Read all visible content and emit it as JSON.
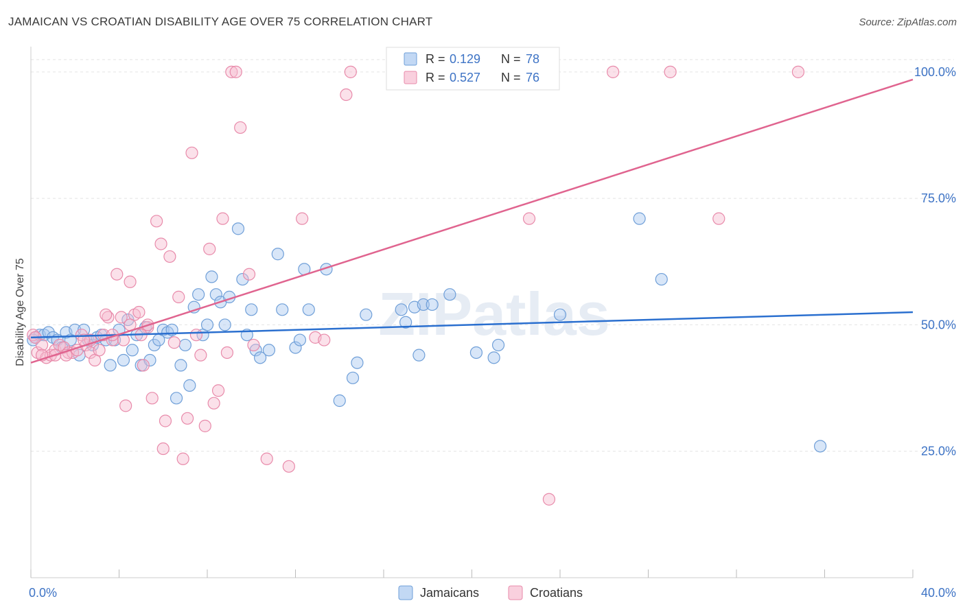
{
  "chart_data": {
    "type": "scatter",
    "title": "JAMAICAN VS CROATIAN DISABILITY AGE OVER 75 CORRELATION CHART",
    "source": "Source: ZipAtlas.com",
    "xlabel": "",
    "ylabel": "Disability Age Over 75",
    "xlim": [
      0,
      40
    ],
    "ylim": [
      0,
      105
    ],
    "x_tick_labels": [
      "0.0%",
      "40.0%"
    ],
    "y_ticks": [
      {
        "value": 25,
        "label": "25.0%"
      },
      {
        "value": 50,
        "label": "50.0%"
      },
      {
        "value": 75,
        "label": "75.0%"
      },
      {
        "value": 100,
        "label": "100.0%"
      }
    ],
    "watermark": "ZIPatlas",
    "legend": [
      {
        "series": "Jamaicans",
        "r_label": "R =",
        "r_value": "0.129",
        "n_label": "N =",
        "n_value": "78"
      },
      {
        "series": "Croatians",
        "r_label": "R =",
        "r_value": "0.527",
        "n_label": "N =",
        "n_value": "76"
      }
    ],
    "colors": {
      "jamaicans_fill": "#a8c8f0",
      "jamaicans_stroke": "#6f9fd8",
      "jamaicans_line": "#2a6fcf",
      "croatians_fill": "#f7bcd0",
      "croatians_stroke": "#e88aaa",
      "croatians_line": "#e0648f",
      "tick_label": "#3d73c5",
      "grid": "#e3e3e3"
    },
    "series": [
      {
        "name": "Jamaicans",
        "trend": {
          "x0": 0,
          "y0": 47.5,
          "x1": 40,
          "y1": 52.5
        },
        "points": [
          [
            0.2,
            47.5
          ],
          [
            0.4,
            48
          ],
          [
            0.6,
            48
          ],
          [
            0.8,
            48.5
          ],
          [
            1.0,
            47.5
          ],
          [
            1.2,
            47
          ],
          [
            1.4,
            45.5
          ],
          [
            1.6,
            48.5
          ],
          [
            1.8,
            47
          ],
          [
            2.0,
            49
          ],
          [
            2.2,
            44
          ],
          [
            2.4,
            49
          ],
          [
            2.6,
            47
          ],
          [
            2.8,
            46
          ],
          [
            3.0,
            47.5
          ],
          [
            3.2,
            48
          ],
          [
            3.4,
            47
          ],
          [
            3.6,
            42
          ],
          [
            3.8,
            47
          ],
          [
            4.0,
            49
          ],
          [
            4.2,
            43
          ],
          [
            4.4,
            51
          ],
          [
            4.6,
            45
          ],
          [
            4.8,
            48
          ],
          [
            5.0,
            42
          ],
          [
            5.2,
            49.5
          ],
          [
            5.4,
            43
          ],
          [
            5.6,
            46
          ],
          [
            5.8,
            47
          ],
          [
            6.0,
            49
          ],
          [
            6.2,
            48.5
          ],
          [
            6.4,
            49
          ],
          [
            6.6,
            35.5
          ],
          [
            6.8,
            42
          ],
          [
            7.0,
            46
          ],
          [
            7.2,
            38
          ],
          [
            7.4,
            53.5
          ],
          [
            7.6,
            56
          ],
          [
            7.8,
            48
          ],
          [
            8.0,
            50
          ],
          [
            8.2,
            59.5
          ],
          [
            8.4,
            56
          ],
          [
            8.6,
            54.5
          ],
          [
            8.8,
            50
          ],
          [
            9.0,
            55.5
          ],
          [
            9.4,
            69
          ],
          [
            9.6,
            59
          ],
          [
            9.8,
            48
          ],
          [
            10.0,
            53
          ],
          [
            10.2,
            45
          ],
          [
            10.4,
            43.5
          ],
          [
            10.8,
            45
          ],
          [
            11.2,
            64
          ],
          [
            11.4,
            53
          ],
          [
            12.0,
            45.5
          ],
          [
            12.2,
            47
          ],
          [
            12.4,
            61
          ],
          [
            12.6,
            53
          ],
          [
            13.4,
            61
          ],
          [
            14.0,
            35
          ],
          [
            14.6,
            39.5
          ],
          [
            14.8,
            42.5
          ],
          [
            15.2,
            52
          ],
          [
            16.8,
            53
          ],
          [
            17.0,
            50.5
          ],
          [
            17.4,
            53.5
          ],
          [
            17.6,
            44
          ],
          [
            17.8,
            54
          ],
          [
            18.2,
            54
          ],
          [
            19.0,
            56
          ],
          [
            20.2,
            44.5
          ],
          [
            21.0,
            43.5
          ],
          [
            21.2,
            46
          ],
          [
            24.0,
            52
          ],
          [
            27.6,
            71
          ],
          [
            28.6,
            59
          ],
          [
            35.8,
            26
          ],
          [
            0.1,
            47
          ]
        ]
      },
      {
        "name": "Croatians",
        "trend": {
          "x0": 0,
          "y0": 42.5,
          "x1": 40,
          "y1": 98.5
        },
        "points": [
          [
            0.1,
            48
          ],
          [
            0.3,
            44.5
          ],
          [
            0.5,
            46
          ],
          [
            0.7,
            43.5
          ],
          [
            0.9,
            44
          ],
          [
            1.1,
            45
          ],
          [
            1.3,
            46
          ],
          [
            1.5,
            45.5
          ],
          [
            1.7,
            44.5
          ],
          [
            1.9,
            44.5
          ],
          [
            2.1,
            45
          ],
          [
            2.3,
            48
          ],
          [
            2.5,
            46
          ],
          [
            2.7,
            44.5
          ],
          [
            2.9,
            43
          ],
          [
            3.1,
            45
          ],
          [
            3.3,
            48
          ],
          [
            3.5,
            51.5
          ],
          [
            3.7,
            47
          ],
          [
            3.9,
            60
          ],
          [
            4.1,
            51.5
          ],
          [
            4.3,
            34
          ],
          [
            4.5,
            58.5
          ],
          [
            4.7,
            52
          ],
          [
            4.9,
            52.5
          ],
          [
            5.1,
            42
          ],
          [
            5.3,
            49.5
          ],
          [
            5.5,
            35.5
          ],
          [
            5.7,
            70.5
          ],
          [
            5.9,
            66
          ],
          [
            6.1,
            31
          ],
          [
            6.3,
            63.5
          ],
          [
            6.5,
            46.5
          ],
          [
            6.7,
            55.5
          ],
          [
            6.9,
            23.5
          ],
          [
            7.1,
            31.5
          ],
          [
            7.3,
            84
          ],
          [
            7.5,
            48
          ],
          [
            7.7,
            44
          ],
          [
            7.9,
            30
          ],
          [
            8.1,
            65
          ],
          [
            8.3,
            34.5
          ],
          [
            8.5,
            37
          ],
          [
            8.7,
            71
          ],
          [
            8.9,
            44.5
          ],
          [
            9.1,
            100
          ],
          [
            9.3,
            100
          ],
          [
            9.5,
            89
          ],
          [
            9.9,
            60
          ],
          [
            10.1,
            46
          ],
          [
            10.7,
            23.5
          ],
          [
            11.7,
            22
          ],
          [
            12.3,
            71
          ],
          [
            12.9,
            47.5
          ],
          [
            13.3,
            47
          ],
          [
            14.3,
            95.5
          ],
          [
            14.5,
            100
          ],
          [
            22.6,
            71
          ],
          [
            26.4,
            100
          ],
          [
            29.0,
            100
          ],
          [
            31.2,
            71
          ],
          [
            34.8,
            100
          ],
          [
            23.5,
            15.5
          ],
          [
            2.7,
            47
          ],
          [
            1.1,
            44
          ],
          [
            3.7,
            48
          ],
          [
            4.5,
            50
          ],
          [
            5.3,
            50
          ],
          [
            6.0,
            25.5
          ],
          [
            0.2,
            47.5
          ],
          [
            0.5,
            44
          ],
          [
            1.6,
            44
          ],
          [
            2.4,
            47
          ],
          [
            3.4,
            52
          ],
          [
            4.2,
            47
          ],
          [
            5.0,
            48
          ]
        ]
      }
    ]
  }
}
